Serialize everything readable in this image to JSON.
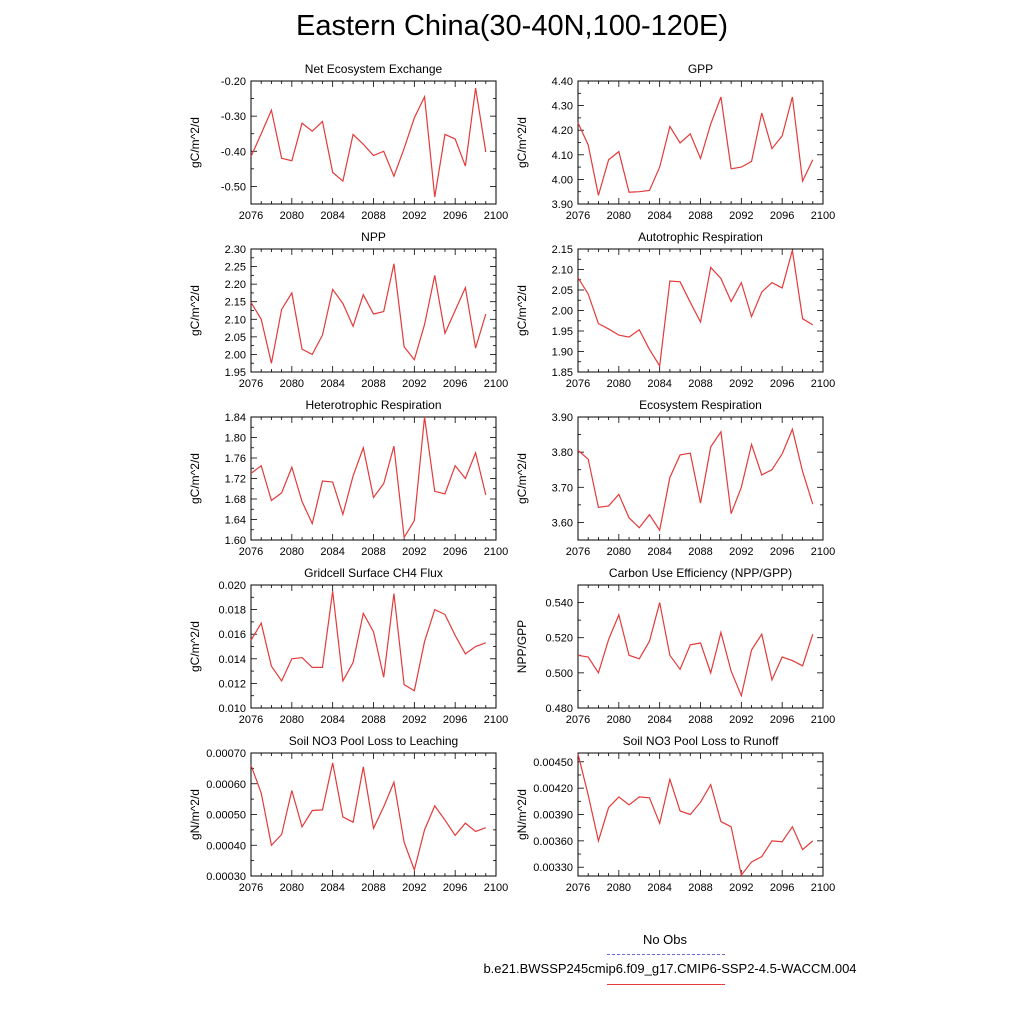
{
  "figure": {
    "title": "Eastern China(30-40N,100-120E)",
    "legend": {
      "obs_label": "No Obs",
      "case_label": "b.e21.BWSSP245cmip6.f09_g17.CMIP6-SSP2-4.5-WACCM.004",
      "obs_color": "#6a6ad0",
      "case_color": "#e33a3a"
    }
  },
  "chart_data": [
    {
      "type": "line",
      "title": "Net Ecosystem Exchange",
      "xlabel": "",
      "ylabel": "gC/m^2/d",
      "xlim": [
        2076,
        2100
      ],
      "ylim": [
        -0.55,
        -0.2
      ],
      "xticks": [
        2076,
        2080,
        2084,
        2088,
        2092,
        2096,
        2100
      ],
      "yticks": [
        -0.5,
        -0.4,
        -0.3,
        -0.2
      ],
      "ytick_labels": [
        "-0.50",
        "-0.40",
        "-0.30",
        "-0.20"
      ],
      "x": [
        2076,
        2077,
        2078,
        2079,
        2080,
        2081,
        2082,
        2083,
        2084,
        2085,
        2086,
        2087,
        2088,
        2089,
        2090,
        2091,
        2092,
        2093,
        2094,
        2095,
        2096,
        2097,
        2098,
        2099
      ],
      "series": [
        {
          "values": [
            -0.415,
            -0.35,
            -0.283,
            -0.42,
            -0.427,
            -0.32,
            -0.343,
            -0.315,
            -0.46,
            -0.485,
            -0.352,
            -0.38,
            -0.412,
            -0.4,
            -0.471,
            -0.392,
            -0.305,
            -0.245,
            -0.53,
            -0.352,
            -0.365,
            -0.442,
            -0.22,
            -0.402
          ],
          "color": "#e33a3a"
        }
      ]
    },
    {
      "type": "line",
      "title": "GPP",
      "xlabel": "",
      "ylabel": "gC/m^2/d",
      "xlim": [
        2076,
        2100
      ],
      "ylim": [
        3.9,
        4.4
      ],
      "xticks": [
        2076,
        2080,
        2084,
        2088,
        2092,
        2096,
        2100
      ],
      "yticks": [
        3.9,
        4.0,
        4.1,
        4.2,
        4.3,
        4.4
      ],
      "ytick_labels": [
        "3.90",
        "4.00",
        "4.10",
        "4.20",
        "4.30",
        "4.40"
      ],
      "x": [
        2076,
        2077,
        2078,
        2079,
        2080,
        2081,
        2082,
        2083,
        2084,
        2085,
        2086,
        2087,
        2088,
        2089,
        2090,
        2091,
        2092,
        2093,
        2094,
        2095,
        2096,
        2097,
        2098,
        2099
      ],
      "series": [
        {
          "values": [
            4.23,
            4.14,
            3.935,
            4.08,
            4.113,
            3.948,
            3.95,
            3.955,
            4.05,
            4.215,
            4.148,
            4.185,
            4.085,
            4.225,
            4.335,
            4.043,
            4.05,
            4.073,
            4.27,
            4.125,
            4.177,
            4.335,
            3.993,
            4.08
          ],
          "color": "#e33a3a"
        }
      ]
    },
    {
      "type": "line",
      "title": "NPP",
      "xlabel": "",
      "ylabel": "gC/m^2/d",
      "xlim": [
        2076,
        2100
      ],
      "ylim": [
        1.95,
        2.3
      ],
      "xticks": [
        2076,
        2080,
        2084,
        2088,
        2092,
        2096,
        2100
      ],
      "yticks": [
        1.95,
        2.0,
        2.05,
        2.1,
        2.15,
        2.2,
        2.25,
        2.3
      ],
      "ytick_labels": [
        "1.95",
        "2.00",
        "2.05",
        "2.10",
        "2.15",
        "2.20",
        "2.25",
        "2.30"
      ],
      "x": [
        2076,
        2077,
        2078,
        2079,
        2080,
        2081,
        2082,
        2083,
        2084,
        2085,
        2086,
        2087,
        2088,
        2089,
        2090,
        2091,
        2092,
        2093,
        2094,
        2095,
        2096,
        2097,
        2098,
        2099
      ],
      "series": [
        {
          "values": [
            2.148,
            2.1,
            1.975,
            2.128,
            2.175,
            2.015,
            2.0,
            2.055,
            2.185,
            2.145,
            2.08,
            2.17,
            2.115,
            2.122,
            2.258,
            2.022,
            1.985,
            2.085,
            2.225,
            2.06,
            2.125,
            2.19,
            2.018,
            2.115
          ],
          "color": "#e33a3a"
        }
      ]
    },
    {
      "type": "line",
      "title": "Autotrophic Respiration",
      "xlabel": "",
      "ylabel": "gC/m^2/d",
      "xlim": [
        2076,
        2100
      ],
      "ylim": [
        1.85,
        2.15
      ],
      "xticks": [
        2076,
        2080,
        2084,
        2088,
        2092,
        2096,
        2100
      ],
      "yticks": [
        1.85,
        1.9,
        1.95,
        2.0,
        2.05,
        2.1,
        2.15
      ],
      "ytick_labels": [
        "1.85",
        "1.90",
        "1.95",
        "2.00",
        "2.05",
        "2.10",
        "2.15"
      ],
      "x": [
        2076,
        2077,
        2078,
        2079,
        2080,
        2081,
        2082,
        2083,
        2084,
        2085,
        2086,
        2087,
        2088,
        2089,
        2090,
        2091,
        2092,
        2093,
        2094,
        2095,
        2096,
        2097,
        2098,
        2099
      ],
      "series": [
        {
          "values": [
            2.08,
            2.04,
            1.968,
            1.955,
            1.94,
            1.935,
            1.953,
            1.905,
            1.865,
            2.072,
            2.07,
            2.02,
            1.972,
            2.105,
            2.078,
            2.022,
            2.068,
            1.985,
            2.045,
            2.068,
            2.055,
            2.147,
            1.98,
            1.965
          ],
          "color": "#e33a3a"
        }
      ]
    },
    {
      "type": "line",
      "title": "Heterotrophic Respiration",
      "xlabel": "",
      "ylabel": "gC/m^2/d",
      "xlim": [
        2076,
        2100
      ],
      "ylim": [
        1.6,
        1.84
      ],
      "xticks": [
        2076,
        2080,
        2084,
        2088,
        2092,
        2096,
        2100
      ],
      "yticks": [
        1.6,
        1.64,
        1.68,
        1.72,
        1.76,
        1.8,
        1.84
      ],
      "ytick_labels": [
        "1.60",
        "1.64",
        "1.68",
        "1.72",
        "1.76",
        "1.80",
        "1.84"
      ],
      "x": [
        2076,
        2077,
        2078,
        2079,
        2080,
        2081,
        2082,
        2083,
        2084,
        2085,
        2086,
        2087,
        2088,
        2089,
        2090,
        2091,
        2092,
        2093,
        2094,
        2095,
        2096,
        2097,
        2098,
        2099
      ],
      "series": [
        {
          "values": [
            1.73,
            1.745,
            1.677,
            1.692,
            1.742,
            1.675,
            1.632,
            1.715,
            1.713,
            1.65,
            1.725,
            1.78,
            1.683,
            1.71,
            1.783,
            1.605,
            1.638,
            1.84,
            1.695,
            1.69,
            1.745,
            1.72,
            1.77,
            1.688
          ],
          "color": "#e33a3a"
        }
      ]
    },
    {
      "type": "line",
      "title": "Ecosystem Respiration",
      "xlabel": "",
      "ylabel": "gC/m^2/d",
      "xlim": [
        2076,
        2100
      ],
      "ylim": [
        3.55,
        3.9
      ],
      "xticks": [
        2076,
        2080,
        2084,
        2088,
        2092,
        2096,
        2100
      ],
      "yticks": [
        3.6,
        3.7,
        3.8,
        3.9
      ],
      "ytick_labels": [
        "3.60",
        "3.70",
        "3.80",
        "3.90"
      ],
      "x": [
        2076,
        2077,
        2078,
        2079,
        2080,
        2081,
        2082,
        2083,
        2084,
        2085,
        2086,
        2087,
        2088,
        2089,
        2090,
        2091,
        2092,
        2093,
        2094,
        2095,
        2096,
        2097,
        2098,
        2099
      ],
      "series": [
        {
          "values": [
            3.805,
            3.78,
            3.643,
            3.647,
            3.68,
            3.613,
            3.585,
            3.622,
            3.578,
            3.728,
            3.792,
            3.797,
            3.655,
            3.815,
            3.858,
            3.625,
            3.7,
            3.822,
            3.735,
            3.75,
            3.795,
            3.865,
            3.745,
            3.652
          ],
          "color": "#e33a3a"
        }
      ]
    },
    {
      "type": "line",
      "title": "Gridcell Surface CH4 Flux",
      "xlabel": "",
      "ylabel": "gC/m^2/d",
      "xlim": [
        2076,
        2100
      ],
      "ylim": [
        0.01,
        0.02
      ],
      "xticks": [
        2076,
        2080,
        2084,
        2088,
        2092,
        2096,
        2100
      ],
      "yticks": [
        0.01,
        0.012,
        0.014,
        0.016,
        0.018,
        0.02
      ],
      "ytick_labels": [
        "0.010",
        "0.012",
        "0.014",
        "0.016",
        "0.018",
        "0.020"
      ],
      "x": [
        2076,
        2077,
        2078,
        2079,
        2080,
        2081,
        2082,
        2083,
        2084,
        2085,
        2086,
        2087,
        2088,
        2089,
        2090,
        2091,
        2092,
        2093,
        2094,
        2095,
        2096,
        2097,
        2098,
        2099
      ],
      "series": [
        {
          "values": [
            0.0155,
            0.0169,
            0.0134,
            0.0122,
            0.014,
            0.0141,
            0.0133,
            0.0133,
            0.0195,
            0.0122,
            0.0137,
            0.0177,
            0.0162,
            0.0125,
            0.0193,
            0.0119,
            0.0114,
            0.0154,
            0.018,
            0.0176,
            0.0159,
            0.0144,
            0.015,
            0.0153
          ],
          "color": "#e33a3a"
        }
      ]
    },
    {
      "type": "line",
      "title": "Carbon Use Efficiency (NPP/GPP)",
      "xlabel": "",
      "ylabel": "NPP/GPP",
      "xlim": [
        2076,
        2100
      ],
      "ylim": [
        0.48,
        0.55
      ],
      "xticks": [
        2076,
        2080,
        2084,
        2088,
        2092,
        2096,
        2100
      ],
      "yticks": [
        0.48,
        0.5,
        0.52,
        0.54
      ],
      "ytick_labels": [
        "0.480",
        "0.500",
        "0.520",
        "0.540"
      ],
      "x": [
        2076,
        2077,
        2078,
        2079,
        2080,
        2081,
        2082,
        2083,
        2084,
        2085,
        2086,
        2087,
        2088,
        2089,
        2090,
        2091,
        2092,
        2093,
        2094,
        2095,
        2096,
        2097,
        2098,
        2099
      ],
      "series": [
        {
          "values": [
            0.51,
            0.509,
            0.5,
            0.519,
            0.533,
            0.51,
            0.508,
            0.518,
            0.54,
            0.51,
            0.502,
            0.516,
            0.517,
            0.5,
            0.523,
            0.501,
            0.487,
            0.513,
            0.522,
            0.496,
            0.509,
            0.507,
            0.504,
            0.522
          ],
          "color": "#e33a3a"
        }
      ]
    },
    {
      "type": "line",
      "title": "Soil NO3 Pool Loss to Leaching",
      "xlabel": "",
      "ylabel": "gN/m^2/d",
      "xlim": [
        2076,
        2100
      ],
      "ylim": [
        0.0003,
        0.0007
      ],
      "xticks": [
        2076,
        2080,
        2084,
        2088,
        2092,
        2096,
        2100
      ],
      "yticks": [
        0.0003,
        0.0004,
        0.0005,
        0.0006,
        0.0007
      ],
      "ytick_labels": [
        "0.00030",
        "0.00040",
        "0.00050",
        "0.00060",
        "0.00070"
      ],
      "x": [
        2076,
        2077,
        2078,
        2079,
        2080,
        2081,
        2082,
        2083,
        2084,
        2085,
        2086,
        2087,
        2088,
        2089,
        2090,
        2091,
        2092,
        2093,
        2094,
        2095,
        2096,
        2097,
        2098,
        2099
      ],
      "series": [
        {
          "values": [
            0.00066,
            0.00057,
            0.0004,
            0.000435,
            0.000578,
            0.00046,
            0.000513,
            0.000515,
            0.000668,
            0.000492,
            0.000475,
            0.000655,
            0.000455,
            0.000525,
            0.000605,
            0.00041,
            0.00032,
            0.00045,
            0.000528,
            0.000482,
            0.000432,
            0.000472,
            0.000445,
            0.000457
          ],
          "color": "#e33a3a"
        }
      ]
    },
    {
      "type": "line",
      "title": "Soil NO3 Pool Loss to Runoff",
      "xlabel": "",
      "ylabel": "gN/m^2/d",
      "xlim": [
        2076,
        2100
      ],
      "ylim": [
        0.0032,
        0.0046
      ],
      "xticks": [
        2076,
        2080,
        2084,
        2088,
        2092,
        2096,
        2100
      ],
      "yticks": [
        0.0033,
        0.0036,
        0.0039,
        0.0042,
        0.0045
      ],
      "ytick_labels": [
        "0.00330",
        "0.00360",
        "0.00390",
        "0.00420",
        "0.00450"
      ],
      "x": [
        2076,
        2077,
        2078,
        2079,
        2080,
        2081,
        2082,
        2083,
        2084,
        2085,
        2086,
        2087,
        2088,
        2089,
        2090,
        2091,
        2092,
        2093,
        2094,
        2095,
        2096,
        2097,
        2098,
        2099
      ],
      "series": [
        {
          "values": [
            0.00459,
            0.00412,
            0.0036,
            0.00398,
            0.0041,
            0.00401,
            0.0041,
            0.00409,
            0.0038,
            0.0043,
            0.00394,
            0.0039,
            0.00404,
            0.00424,
            0.00382,
            0.00376,
            0.00321,
            0.00336,
            0.00342,
            0.0036,
            0.00359,
            0.00376,
            0.0035,
            0.0036
          ],
          "color": "#e33a3a"
        }
      ]
    }
  ]
}
